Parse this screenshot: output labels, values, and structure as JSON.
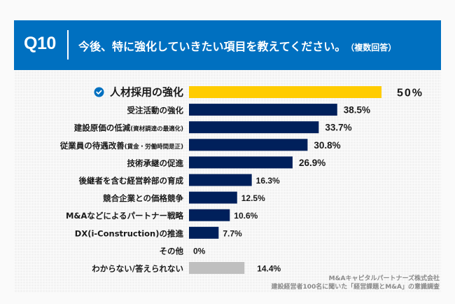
{
  "header": {
    "qnum": "Q10",
    "question": "今後、特に強化していきたい項目を教えてください。",
    "note": "（複数回答）"
  },
  "colors": {
    "header_bg": "#0070c0",
    "highlight": "#ffcc00",
    "bar": "#00205b",
    "bar_other": "#bfbfbf",
    "check": "#0070c0"
  },
  "chart_data": {
    "type": "bar",
    "orientation": "horizontal",
    "title": "今後、特に強化していきたい項目を教えてください。（複数回答）",
    "xlabel": "",
    "ylabel": "",
    "xlim": [
      0,
      50
    ],
    "grid": false,
    "legend": "none",
    "unit": "%",
    "categories": [
      {
        "main": "人材採用の強化",
        "sub": ""
      },
      {
        "main": "受注活動の強化",
        "sub": ""
      },
      {
        "main": "建設原価の低減",
        "sub": "(資材調達の最適化)"
      },
      {
        "main": "従業員の待遇改善",
        "sub": "(賃金・労働時間是正)"
      },
      {
        "main": "技術承継の促進",
        "sub": ""
      },
      {
        "main": "後継者を含む経営幹部の育成",
        "sub": ""
      },
      {
        "main": "競合企業との価格競争",
        "sub": ""
      },
      {
        "main": "M&Aなどによるパートナー戦略",
        "sub": ""
      },
      {
        "main": "DX(i-Construction)の推進",
        "sub": ""
      },
      {
        "main": "その他",
        "sub": ""
      },
      {
        "main": "わからない/答えられない",
        "sub": ""
      }
    ],
    "values": [
      50,
      38.5,
      33.7,
      30.8,
      26.9,
      16.3,
      12.5,
      10.6,
      7.7,
      0,
      14.4
    ],
    "value_labels": [
      "50%",
      "38.5%",
      "33.7%",
      "30.8%",
      "26.9%",
      "16.3%",
      "12.5%",
      "10.6%",
      "7.7%",
      "0%",
      "14.4%"
    ],
    "highlight_index": 0,
    "muted_index": 10
  },
  "source": {
    "line1": "M&Aキャピタルパートナーズ株式会社",
    "line2": "建設経営者100名に聞いた「経営課題とM&A」の意識調査"
  }
}
